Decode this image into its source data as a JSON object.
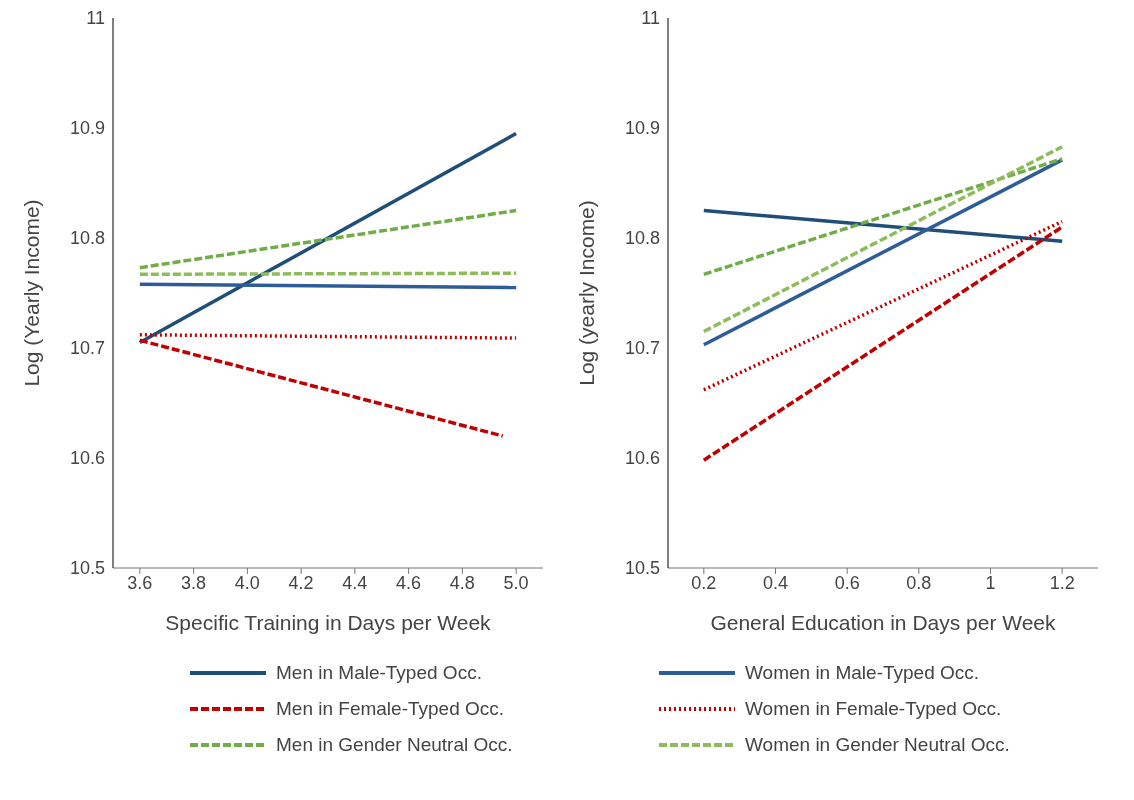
{
  "chart_data": [
    {
      "type": "line",
      "xlabel": "Specific Training in Days per Week",
      "ylabel": "Log (Yearly Income)",
      "xlim": [
        3.5,
        5.1
      ],
      "xticks": [
        3.6,
        3.8,
        {
          "value": 4.0,
          "label": "4.0"
        },
        4.2,
        4.4,
        4.6,
        4.8,
        {
          "value": 5.0,
          "label": "5.0"
        }
      ],
      "ylim": [
        10.5,
        11
      ],
      "yticks": [
        10.5,
        10.6,
        10.7,
        10.8,
        10.9,
        11
      ],
      "grid": false,
      "legend": "bottom",
      "marker": "none",
      "series": [
        {
          "name": "Men in Male-Typed Occ.",
          "color": "#1f4e79",
          "line_style": "solid",
          "x": [
            3.6,
            5.0
          ],
          "values": [
            10.705,
            10.895
          ]
        },
        {
          "name": "Women in Male-Typed Occ.",
          "color": "#2e5c99",
          "line_style": "solid",
          "x": [
            3.6,
            5.0
          ],
          "values": [
            10.758,
            10.755
          ]
        },
        {
          "name": "Men in Female-Typed Occ.",
          "color": "#c00000",
          "line_style": "dashed",
          "x": [
            3.6,
            4.95
          ],
          "values": [
            10.707,
            10.62
          ]
        },
        {
          "name": "Women in Female-Typed Occ.",
          "color": "#c00000",
          "line_style": "dotted",
          "x": [
            3.6,
            5.0
          ],
          "values": [
            10.712,
            10.709
          ]
        },
        {
          "name": "Men in Gender Neutral Occ.",
          "color": "#70ad47",
          "line_style": "dashed",
          "x": [
            3.6,
            5.0
          ],
          "values": [
            10.773,
            10.825
          ]
        },
        {
          "name": "Women in Gender Neutral Occ.",
          "color": "#8cbd5a",
          "line_style": "dashed",
          "x": [
            3.6,
            5.0
          ],
          "values": [
            10.767,
            10.768
          ]
        }
      ]
    },
    {
      "type": "line",
      "xlabel": "General Education in Days per Week",
      "ylabel": "Log (yearly Income)",
      "xlim": [
        0.1,
        1.3
      ],
      "xticks": [
        0.2,
        0.4,
        0.6,
        0.8,
        1,
        1.2
      ],
      "ylim": [
        10.5,
        11
      ],
      "yticks": [
        10.5,
        10.6,
        10.7,
        10.8,
        10.9,
        11
      ],
      "grid": false,
      "marker": "none",
      "series": [
        {
          "color": "#1f4e79",
          "line_style": "solid",
          "x": [
            0.2,
            1.2
          ],
          "values": [
            10.825,
            10.797
          ]
        },
        {
          "color": "#2e5c99",
          "line_style": "solid",
          "x": [
            0.2,
            1.2
          ],
          "values": [
            10.703,
            10.871
          ]
        },
        {
          "color": "#c00000",
          "line_style": "dashed",
          "x": [
            0.2,
            1.2
          ],
          "values": [
            10.598,
            10.81
          ]
        },
        {
          "color": "#c00000",
          "line_style": "dotted",
          "x": [
            0.2,
            1.2
          ],
          "values": [
            10.662,
            10.815
          ]
        },
        {
          "color": "#70ad47",
          "line_style": "dashed",
          "x": [
            0.2,
            1.2
          ],
          "values": [
            10.767,
            10.872
          ]
        },
        {
          "color": "#8cbd5a",
          "line_style": "dashed",
          "x": [
            0.2,
            1.2
          ],
          "values": [
            10.715,
            10.883
          ]
        }
      ]
    }
  ]
}
